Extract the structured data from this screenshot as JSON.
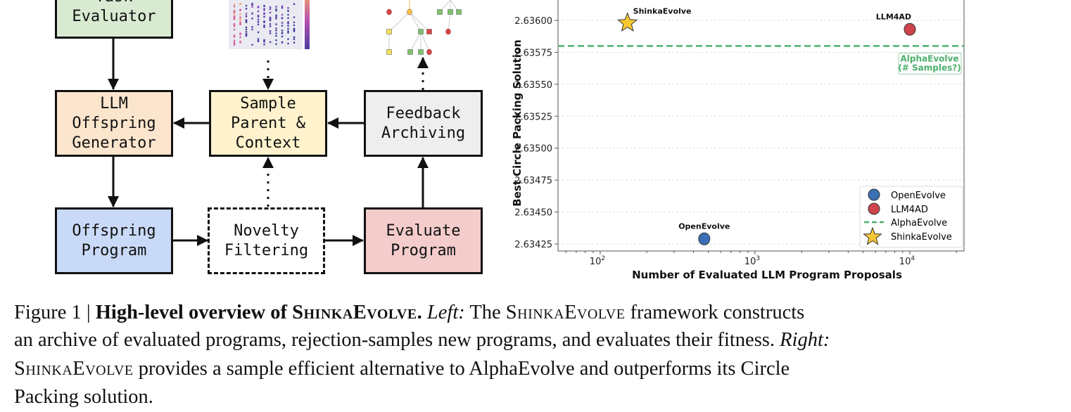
{
  "diagram": {
    "boxes": {
      "task_evaluator": "Task\nEvaluator",
      "llm_generator": "LLM\nOffspring\nGenerator",
      "sample_parent": "Sample\nParent &\nContext",
      "feedback_archiving": "Feedback\nArchiving",
      "offspring_program": "Offspring\nProgram",
      "novelty_filtering": "Novelty\nFiltering",
      "evaluate_program": "Evaluate\nProgram"
    },
    "colors": {
      "task_evaluator": "#d9ead3",
      "llm_generator": "#fce5cd",
      "sample_parent": "#fff2cc",
      "feedback_archiving": "#eeeeee",
      "offspring_program": "#c9daf8",
      "evaluate_program": "#f4cccc"
    }
  },
  "chart_data": {
    "type": "scatter",
    "xlabel": "Number of Evaluated LLM Program Proposals",
    "ylabel": "Best Circle Packing Solution",
    "xscale": "log",
    "xlim": [
      53.4,
      22400
    ],
    "ylim": [
      2.634195,
      2.636187
    ],
    "xticks": [
      100,
      1000,
      10000
    ],
    "xtick_labels": [
      {
        "base": "10",
        "exp": "2"
      },
      {
        "base": "10",
        "exp": "3"
      },
      {
        "base": "10",
        "exp": "4"
      }
    ],
    "yticks": [
      2.63425,
      2.6345,
      2.63475,
      2.635,
      2.63525,
      2.6355,
      2.63575,
      2.636
    ],
    "ytick_labels": [
      "2.63425",
      "2.63450",
      "2.63475",
      "2.63500",
      "2.63525",
      "2.63550",
      "2.63575",
      "2.63600"
    ],
    "grid": true,
    "series": [
      {
        "name": "OpenEvolve",
        "x": 470,
        "y": 2.63429,
        "marker": "circle",
        "color": "#3b6fb6",
        "label": "OpenEvolve"
      },
      {
        "name": "LLM4AD",
        "x": 10000,
        "y": 2.63593,
        "marker": "circle",
        "color": "#d0434b",
        "label": "LLM4AD"
      },
      {
        "name": "ShinkaEvolve",
        "x": 150,
        "y": 2.63598,
        "marker": "star",
        "color": "#f7c832",
        "label": "ShinkaEvolve"
      }
    ],
    "hline": {
      "name": "AlphaEvolve",
      "y": 2.6358,
      "color": "#4caf6a",
      "annotation_line1": "AlphaEvolve",
      "annotation_line2": "(# Samples?)"
    },
    "legend": {
      "placement": "lower-right",
      "entries": [
        "OpenEvolve",
        "LLM4AD",
        "AlphaEvolve",
        "ShinkaEvolve"
      ]
    }
  },
  "caption": {
    "fig": "Figure 1 | ",
    "bold": "High-level overview of ",
    "name": "ShinkaEvolve",
    "period": ".",
    "left": "Left:",
    "l1a": " The ",
    "l1b": " framework constructs",
    "l2": "an archive of evaluated programs, rejection-samples new programs, and evaluates their fitness. ",
    "right": "Right:",
    "l3": " provides a sample efficient alternative to AlphaEvolve and outperforms its Circle",
    "l4": "Packing solution."
  }
}
